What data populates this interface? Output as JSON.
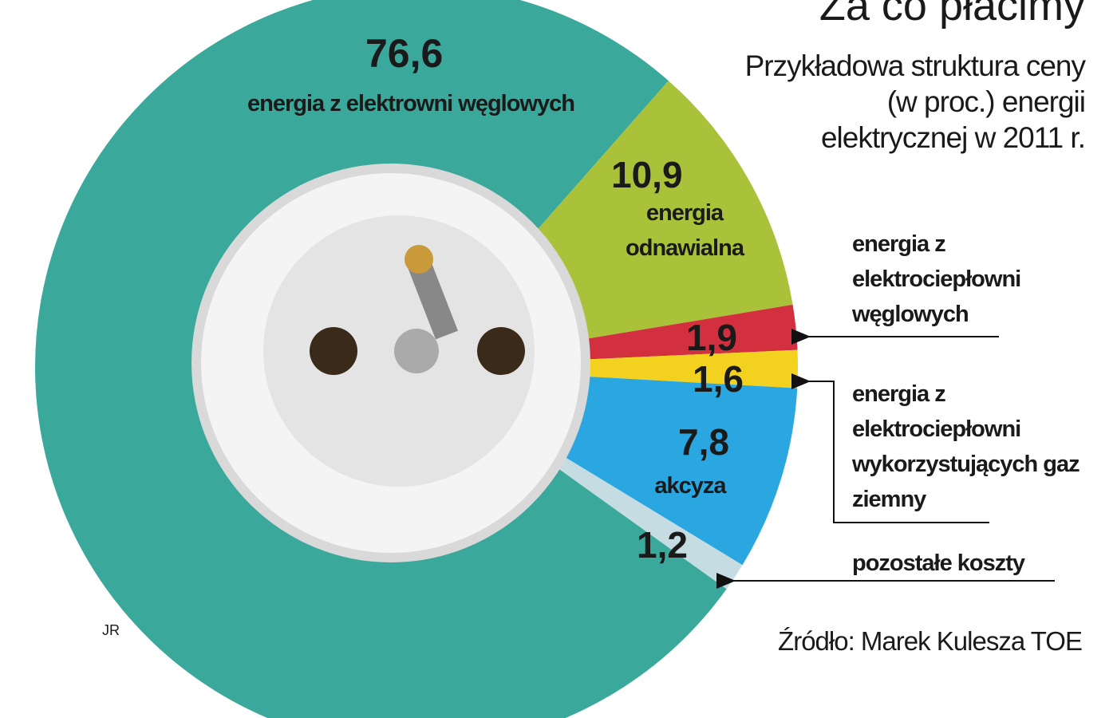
{
  "chart_data": {
    "type": "donut",
    "title": "Za co płacimy",
    "subtitle": "Przykładowa struktura ceny (w proc.) energii elektrycznej w 2011 r.",
    "categories": [
      "energia z elektrowni węglowych",
      "energia odnawialna",
      "energia z elektrociepłowni węglowych",
      "energia z elektrociepłowni wykorzystujących gaz ziemny",
      "akcyza",
      "pozostałe koszty"
    ],
    "values": [
      76.6,
      10.9,
      1.9,
      1.6,
      7.8,
      1.2
    ],
    "value_labels": [
      "76,6",
      "10,9",
      "1,9",
      "1,6",
      "7,8",
      "1,2"
    ],
    "colors": [
      "#3aa89a",
      "#a9c23a",
      "#d2303f",
      "#f2d21f",
      "#2aa7e0",
      "#c5dce3"
    ],
    "source": "Źródło: Marek Kulesza TOE",
    "credit": "JR"
  }
}
